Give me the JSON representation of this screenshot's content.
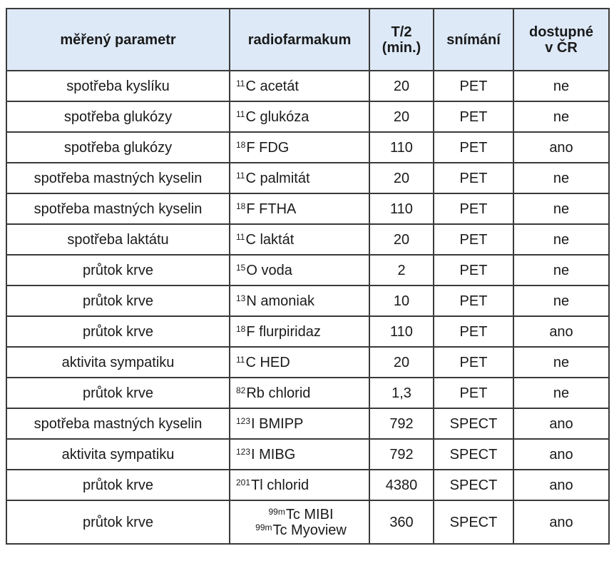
{
  "headers": {
    "parameter": "měřený parametr",
    "radiopharm": "radiofarmakum",
    "halflife_line1": "T/2",
    "halflife_line2": "(min.)",
    "imaging": "snímání",
    "available_line1": "dostupné",
    "available_line2": "v ČR"
  },
  "rows": [
    {
      "parameter": "spotřeba kyslíku",
      "isotope": "11",
      "radio": "C acetát",
      "halflife": "20",
      "imaging": "PET",
      "available": "ne"
    },
    {
      "parameter": "spotřeba glukózy",
      "isotope": "11",
      "radio": "C glukóza",
      "halflife": "20",
      "imaging": "PET",
      "available": "ne"
    },
    {
      "parameter": "spotřeba glukózy",
      "isotope": "18",
      "radio": "F FDG",
      "halflife": "110",
      "imaging": "PET",
      "available": "ano"
    },
    {
      "parameter": "spotřeba mastných kyselin",
      "isotope": "11",
      "radio": "C palmitát",
      "halflife": "20",
      "imaging": "PET",
      "available": "ne"
    },
    {
      "parameter": "spotřeba mastných kyselin",
      "isotope": "18",
      "radio": "F FTHA",
      "halflife": "110",
      "imaging": "PET",
      "available": "ne"
    },
    {
      "parameter": "spotřeba laktátu",
      "isotope": "11",
      "radio": "C laktát",
      "halflife": "20",
      "imaging": "PET",
      "available": "ne"
    },
    {
      "parameter": "průtok krve",
      "isotope": "15",
      "radio": "O voda",
      "halflife": "2",
      "imaging": "PET",
      "available": "ne"
    },
    {
      "parameter": "průtok krve",
      "isotope": "13",
      "radio": "N amoniak",
      "halflife": "10",
      "imaging": "PET",
      "available": "ne"
    },
    {
      "parameter": "průtok krve",
      "isotope": "18",
      "radio": "F flurpiridaz",
      "halflife": "110",
      "imaging": "PET",
      "available": "ano"
    },
    {
      "parameter": "aktivita sympatiku",
      "isotope": "11",
      "radio": "C HED",
      "halflife": "20",
      "imaging": "PET",
      "available": "ne"
    },
    {
      "parameter": "průtok krve",
      "isotope": "82",
      "radio": "Rb chlorid",
      "halflife": "1,3",
      "imaging": "PET",
      "available": "ne"
    },
    {
      "parameter": "spotřeba mastných kyselin",
      "isotope": "123",
      "radio": "I BMIPP",
      "halflife": "792",
      "imaging": "SPECT",
      "available": "ano"
    },
    {
      "parameter": "aktivita sympatiku",
      "isotope": "123",
      "radio": "I MIBG",
      "halflife": "792",
      "imaging": "SPECT",
      "available": "ano"
    },
    {
      "parameter": "průtok krve",
      "isotope": "201",
      "radio": "Tl chlorid",
      "halflife": "4380",
      "imaging": "SPECT",
      "available": "ano"
    }
  ],
  "last_row": {
    "parameter": "průtok krve",
    "isotope1": "99m",
    "radio1": "Tc MIBI",
    "isotope2": "99m",
    "radio2": "Tc Myoview",
    "halflife": "360",
    "imaging": "SPECT",
    "available": "ano"
  }
}
